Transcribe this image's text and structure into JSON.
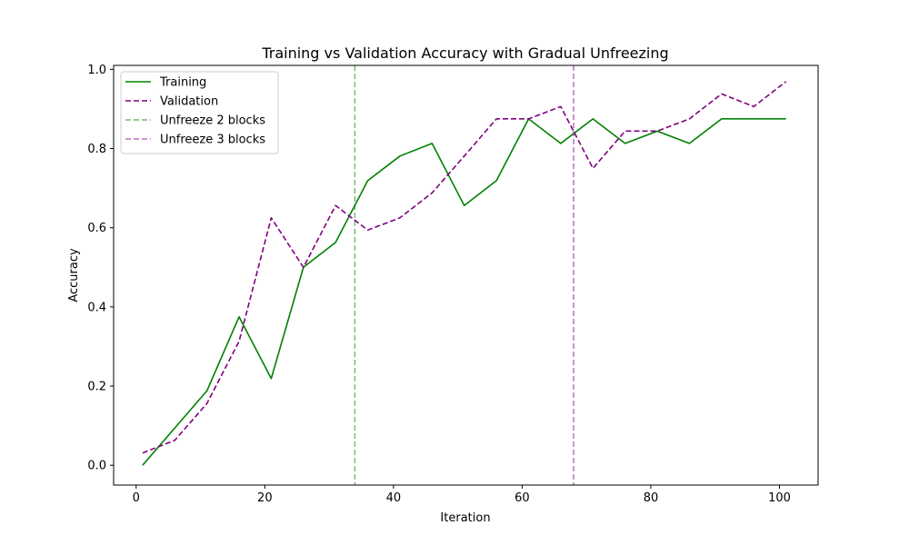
{
  "chart_data": {
    "type": "line",
    "title": "Training vs Validation Accuracy with Gradual Unfreezing",
    "xlabel": "Iteration",
    "ylabel": "Accuracy",
    "xlim": [
      -3.5,
      106
    ],
    "ylim": [
      -0.05,
      1.01
    ],
    "xticks": [
      0,
      20,
      40,
      60,
      80,
      100
    ],
    "yticks": [
      0.0,
      0.2,
      0.4,
      0.6,
      0.8,
      1.0
    ],
    "xtick_labels": [
      "0",
      "20",
      "40",
      "60",
      "80",
      "100"
    ],
    "ytick_labels": [
      "0.0",
      "0.2",
      "0.4",
      "0.6",
      "0.8",
      "1.0"
    ],
    "grid": false,
    "legend_position": "upper-left",
    "series": [
      {
        "name": "Training",
        "color": "#008000",
        "style": "solid",
        "x": [
          1,
          6,
          11,
          16,
          21,
          26,
          31,
          36,
          41,
          46,
          51,
          56,
          61,
          66,
          71,
          76,
          81,
          86,
          91,
          96,
          101
        ],
        "y": [
          0.0,
          0.094,
          0.188,
          0.375,
          0.219,
          0.5,
          0.563,
          0.719,
          0.781,
          0.813,
          0.656,
          0.719,
          0.875,
          0.813,
          0.875,
          0.813,
          0.844,
          0.813,
          0.875,
          0.875,
          0.875
        ]
      },
      {
        "name": "Validation",
        "color": "#800080",
        "style": "dashed",
        "x": [
          1,
          6,
          11,
          16,
          21,
          26,
          31,
          36,
          41,
          46,
          51,
          56,
          61,
          66,
          71,
          76,
          81,
          86,
          91,
          96,
          101
        ],
        "y": [
          0.031,
          0.063,
          0.156,
          0.313,
          0.625,
          0.5,
          0.656,
          0.594,
          0.625,
          0.688,
          0.781,
          0.875,
          0.875,
          0.906,
          0.75,
          0.844,
          0.844,
          0.875,
          0.938,
          0.906,
          0.969
        ]
      }
    ],
    "vlines": [
      {
        "name": "Unfreeze 2 blocks",
        "x": 34,
        "color": "#008000"
      },
      {
        "name": "Unfreeze 3 blocks",
        "x": 68,
        "color": "#800080"
      }
    ]
  }
}
